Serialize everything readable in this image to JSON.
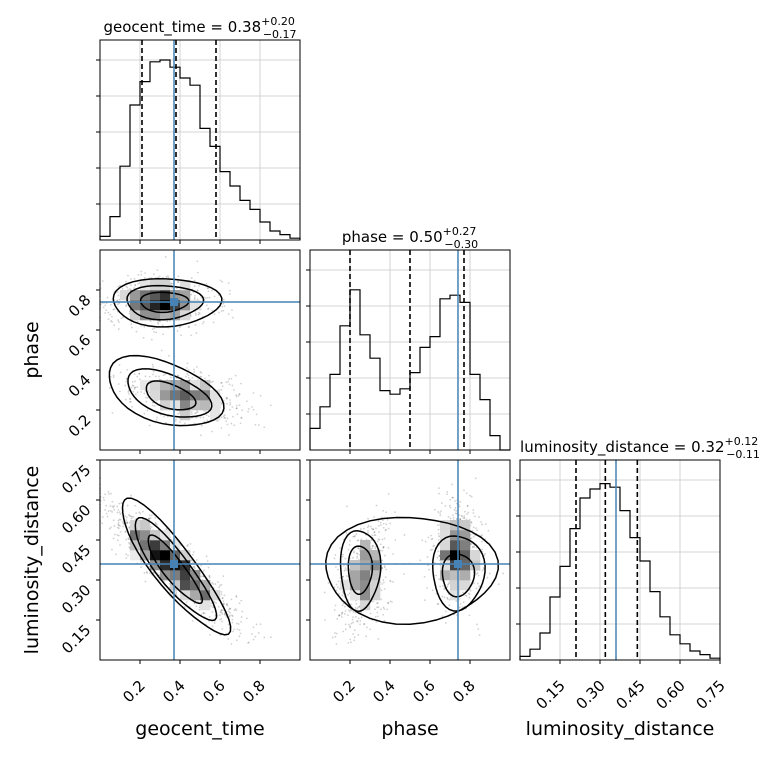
{
  "chart_data": {
    "type": "corner",
    "parameters": [
      "geocent_time",
      "phase",
      "luminosity_distance"
    ],
    "truths": [
      0.37,
      0.74,
      0.36
    ],
    "truth_color": "#4682b4",
    "ranges": [
      [
        0.0,
        1.0
      ],
      [
        0.0,
        1.0
      ],
      [
        0.0,
        0.75
      ]
    ],
    "ticks": [
      {
        "values": [
          0.2,
          0.4,
          0.6,
          0.8
        ],
        "labels": [
          "0.2",
          "0.4",
          "0.6",
          "0.8"
        ]
      },
      {
        "values": [
          0.2,
          0.4,
          0.6,
          0.8
        ],
        "labels": [
          "0.2",
          "0.4",
          "0.6",
          "0.8"
        ]
      },
      {
        "values": [
          0.15,
          0.3,
          0.45,
          0.6,
          0.75
        ],
        "labels": [
          "0.15",
          "0.30",
          "0.45",
          "0.60",
          "0.75"
        ]
      }
    ],
    "titles": [
      {
        "main": "geocent_time = 0.38",
        "sup": "+0.20",
        "sub": "−0.17"
      },
      {
        "main": "phase = 0.50",
        "sup": "+0.27",
        "sub": "−0.30"
      },
      {
        "main": "luminosity_distance = 0.32",
        "sup": "+0.12",
        "sub": "−0.11"
      }
    ],
    "quantiles": [
      [
        0.21,
        0.38,
        0.58
      ],
      [
        0.2,
        0.5,
        0.77
      ],
      [
        0.21,
        0.32,
        0.44
      ]
    ],
    "histograms": [
      {
        "bin_edges": [
          0.0,
          0.05,
          0.1,
          0.15,
          0.2,
          0.25,
          0.3,
          0.35,
          0.4,
          0.45,
          0.5,
          0.55,
          0.6,
          0.65,
          0.7,
          0.75,
          0.8,
          0.85,
          0.9,
          0.95,
          1.0
        ],
        "counts": [
          0.02,
          0.13,
          0.41,
          0.75,
          0.88,
          0.99,
          1.0,
          0.96,
          0.9,
          0.86,
          0.62,
          0.52,
          0.38,
          0.3,
          0.22,
          0.17,
          0.1,
          0.05,
          0.03,
          0.01
        ]
      },
      {
        "bin_edges": [
          0.0,
          0.05,
          0.1,
          0.15,
          0.2,
          0.25,
          0.3,
          0.35,
          0.4,
          0.45,
          0.5,
          0.55,
          0.6,
          0.65,
          0.7,
          0.75,
          0.8,
          0.85,
          0.9,
          0.95,
          1.0
        ],
        "counts": [
          0.12,
          0.24,
          0.42,
          0.69,
          0.89,
          0.64,
          0.51,
          0.33,
          0.31,
          0.34,
          0.43,
          0.57,
          0.63,
          0.84,
          0.86,
          0.82,
          0.42,
          0.28,
          0.08,
          0.0
        ]
      },
      {
        "bin_edges": [
          0.0,
          0.0375,
          0.075,
          0.1125,
          0.15,
          0.1875,
          0.225,
          0.2625,
          0.3,
          0.3375,
          0.375,
          0.4125,
          0.45,
          0.4875,
          0.525,
          0.5625,
          0.6,
          0.6375,
          0.675,
          0.7125,
          0.75
        ],
        "counts": [
          0.02,
          0.06,
          0.15,
          0.35,
          0.52,
          0.73,
          0.9,
          0.95,
          0.98,
          0.96,
          0.83,
          0.68,
          0.55,
          0.38,
          0.24,
          0.14,
          0.09,
          0.05,
          0.03,
          0.01
        ]
      }
    ],
    "labels": {
      "x": [
        "geocent_time",
        "phase",
        "luminosity_distance"
      ],
      "y": [
        "phase",
        "luminosity_distance"
      ]
    }
  }
}
